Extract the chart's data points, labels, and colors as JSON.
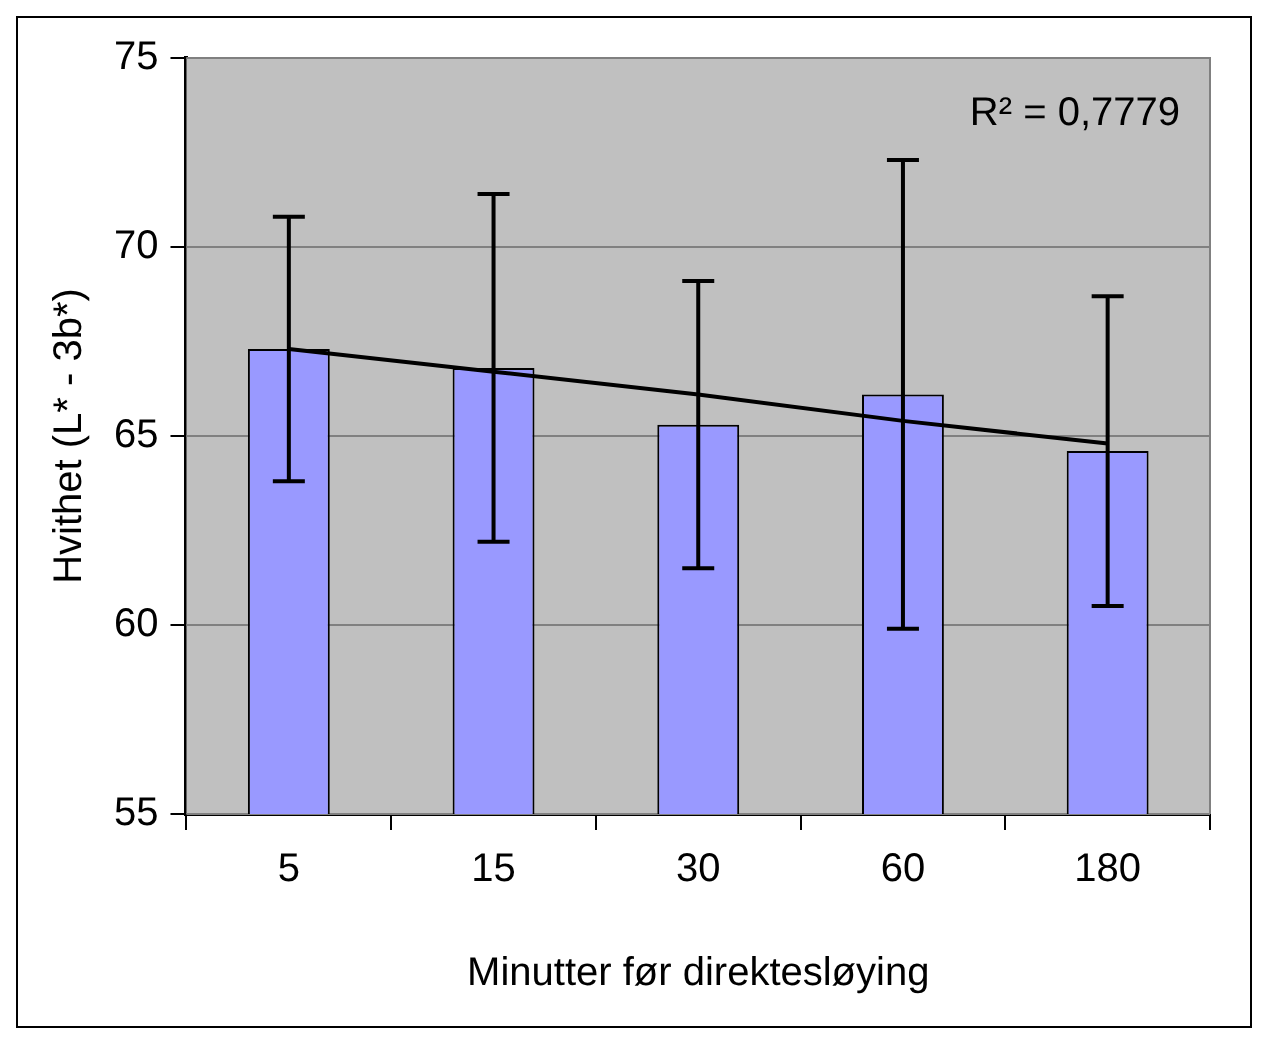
{
  "chart_data": {
    "type": "bar",
    "xlabel": "Minutter før direktesløying",
    "ylabel": "Hvithet (L* - 3b*)",
    "categories": [
      "5",
      "15",
      "30",
      "60",
      "180"
    ],
    "series": [
      {
        "color": "#9999ff",
        "values": [
          67.3,
          66.8,
          65.3,
          66.1,
          64.6
        ],
        "errors": [
          3.5,
          4.6,
          3.8,
          6.2,
          4.1
        ]
      },
      {
        "type": "line",
        "color": "#000000",
        "marker": "none",
        "values": [
          67.3,
          66.7,
          66.1,
          65.4,
          64.8
        ]
      }
    ],
    "ylim": [
      55,
      75
    ],
    "yticks": [
      55,
      60,
      65,
      70,
      75
    ],
    "grid": "y",
    "legend": false,
    "annotations": [
      "R² = 0,7779"
    ]
  }
}
